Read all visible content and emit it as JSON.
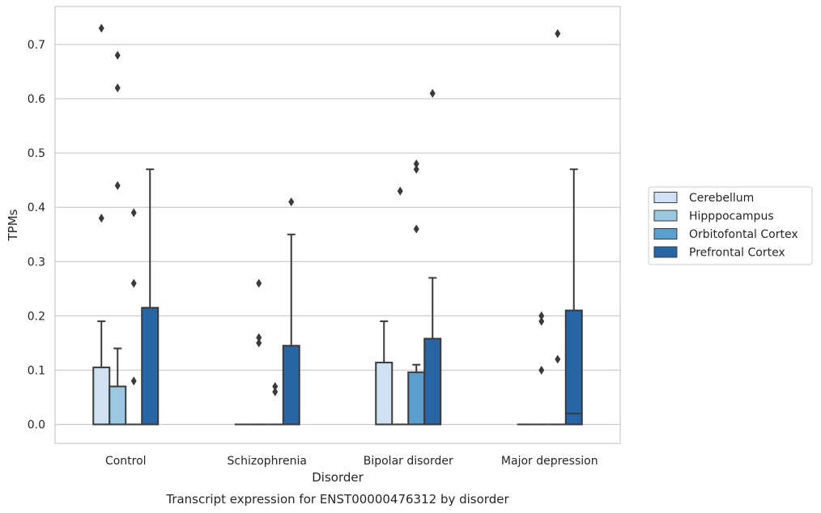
{
  "chart_data": {
    "type": "box",
    "xlabel": "Disorder",
    "ylabel": "TPMs",
    "caption": "Transcript expression for ENST00000476312 by disorder",
    "categories": [
      "Control",
      "Schizophrenia",
      "Bipolar disorder",
      "Major depression"
    ],
    "ylim": [
      -0.035,
      0.77
    ],
    "yticks": [
      "0.0",
      "0.1",
      "0.2",
      "0.3",
      "0.4",
      "0.5",
      "0.6",
      "0.7"
    ],
    "grid": true,
    "legend_position": "right",
    "series": [
      {
        "name": "Cerebellum",
        "color": "#cfe1f2",
        "boxes": [
          {
            "q1": 0,
            "median": 0,
            "q3": 0.105,
            "whisker_low": 0,
            "whisker_high": 0.19,
            "outliers": [
              0.73,
              0.38
            ]
          },
          {
            "q1": 0,
            "median": 0,
            "q3": 0,
            "whisker_low": 0,
            "whisker_high": 0,
            "outliers": []
          },
          {
            "q1": 0,
            "median": 0,
            "q3": 0.114,
            "whisker_low": 0,
            "whisker_high": 0.19,
            "outliers": []
          },
          {
            "q1": 0,
            "median": 0,
            "q3": 0,
            "whisker_low": 0,
            "whisker_high": 0,
            "outliers": []
          }
        ]
      },
      {
        "name": "Hipppocampus",
        "color": "#9ac8e0",
        "boxes": [
          {
            "q1": 0,
            "median": 0,
            "q3": 0.07,
            "whisker_low": 0,
            "whisker_high": 0.14,
            "outliers": [
              0.68,
              0.62,
              0.44
            ]
          },
          {
            "q1": 0,
            "median": 0,
            "q3": 0,
            "whisker_low": 0,
            "whisker_high": 0,
            "outliers": [
              0.26,
              0.16,
              0.15
            ]
          },
          {
            "q1": 0,
            "median": 0,
            "q3": 0,
            "whisker_low": 0,
            "whisker_high": 0,
            "outliers": [
              0.43
            ]
          },
          {
            "q1": 0,
            "median": 0,
            "q3": 0,
            "whisker_low": 0,
            "whisker_high": 0,
            "outliers": [
              0.2,
              0.19,
              0.1
            ]
          }
        ]
      },
      {
        "name": "Orbitofontal Cortex",
        "color": "#5a9fcd",
        "boxes": [
          {
            "q1": 0,
            "median": 0,
            "q3": 0,
            "whisker_low": 0,
            "whisker_high": 0,
            "outliers": [
              0.39,
              0.26,
              0.08
            ]
          },
          {
            "q1": 0,
            "median": 0,
            "q3": 0,
            "whisker_low": 0,
            "whisker_high": 0,
            "outliers": [
              0.07,
              0.06
            ]
          },
          {
            "q1": 0,
            "median": 0,
            "q3": 0.096,
            "whisker_low": 0,
            "whisker_high": 0.11,
            "outliers": [
              0.48,
              0.47,
              0.36
            ]
          },
          {
            "q1": 0,
            "median": 0,
            "q3": 0,
            "whisker_low": 0,
            "whisker_high": 0,
            "outliers": [
              0.72,
              0.12
            ]
          }
        ]
      },
      {
        "name": "Prefrontal Cortex",
        "color": "#2765a5",
        "boxes": [
          {
            "q1": 0,
            "median": 0,
            "q3": 0.215,
            "whisker_low": 0,
            "whisker_high": 0.47,
            "outliers": []
          },
          {
            "q1": 0,
            "median": 0,
            "q3": 0.145,
            "whisker_low": 0,
            "whisker_high": 0.35,
            "outliers": [
              0.41
            ]
          },
          {
            "q1": 0,
            "median": 0,
            "q3": 0.158,
            "whisker_low": 0,
            "whisker_high": 0.27,
            "outliers": [
              0.61
            ]
          },
          {
            "q1": 0,
            "median": 0.02,
            "q3": 0.21,
            "whisker_low": 0,
            "whisker_high": 0.47,
            "outliers": []
          }
        ]
      }
    ]
  }
}
